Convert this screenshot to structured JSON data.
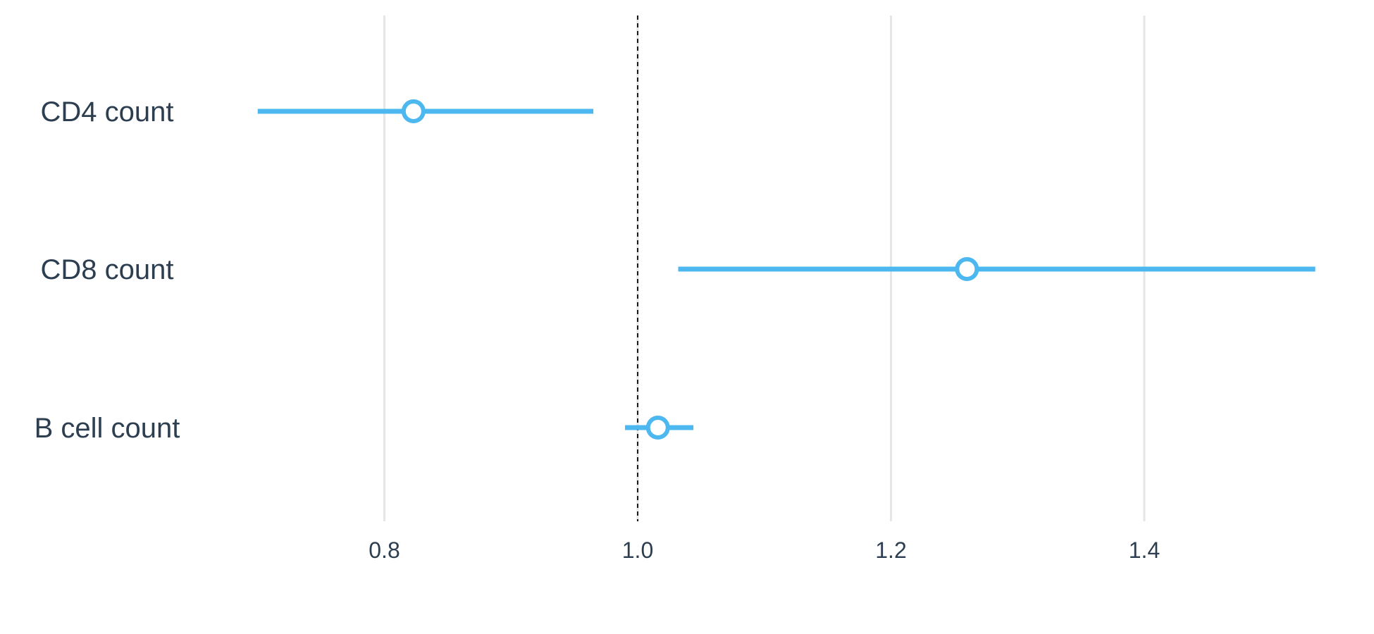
{
  "chart_data": {
    "type": "forest",
    "title": "",
    "xlabel": "",
    "ylabel": "",
    "xlim": [
      0.6,
      1.55
    ],
    "x_ticks": [
      "0.8",
      "1.0",
      "1.2",
      "1.4"
    ],
    "reference_line": 1.0,
    "grid": true,
    "legend": "none",
    "series_color": "#4db8f0",
    "rows": [
      {
        "label": "CD4 count",
        "estimate": 0.823,
        "lower": 0.7,
        "upper": 0.965
      },
      {
        "label": "CD8 count",
        "estimate": 1.26,
        "lower": 1.032,
        "upper": 1.535
      },
      {
        "label": "B cell count",
        "estimate": 1.016,
        "lower": 0.99,
        "upper": 1.044
      }
    ]
  }
}
